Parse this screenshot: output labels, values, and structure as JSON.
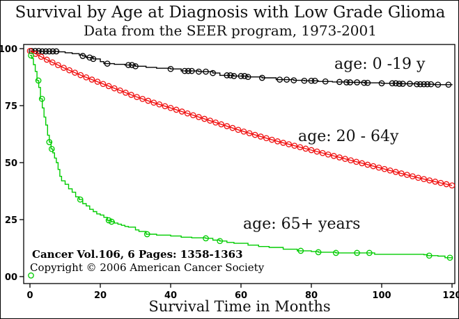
{
  "header": {
    "title": "Survival by Age at Diagnosis with Low Grade Glioma",
    "subtitle": "Data from the SEER program, 1973-2001"
  },
  "annotations": {
    "citation": "Cancer Vol.106, 6 Pages: 1358-1363",
    "copyright": "Copyright © 2006 American Cancer Society"
  },
  "colors": {
    "axis": "#000000",
    "series_black": "#000000",
    "series_red": "#f01010",
    "series_green": "#00cc00"
  },
  "chart_data": {
    "type": "line",
    "title": "Survival by Age at Diagnosis with Low Grade Glioma",
    "subtitle": "Data from the SEER program, 1973-2001",
    "xlabel": "Survival Time in Months",
    "ylabel": "",
    "xlim": [
      0,
      120
    ],
    "ylim": [
      0,
      100
    ],
    "grid": false,
    "x_ticks": {
      "values": [
        0,
        20,
        40,
        60,
        80,
        100,
        120
      ],
      "labels": [
        "0",
        "20",
        "40",
        "60",
        "80",
        "100",
        "120"
      ]
    },
    "y_ticks": {
      "values": [
        100,
        75,
        50,
        25,
        0
      ],
      "labels": [
        "100",
        "75",
        "50",
        "25",
        "00"
      ]
    },
    "series": [
      {
        "name": "age-0-19",
        "label": "age: 0 -19 y",
        "color": "#000000",
        "interpolation": "step",
        "marker": "circle",
        "marker_months": [
          0.5,
          1.5,
          2.5,
          3.5,
          4.5,
          5.5,
          6.5,
          7.5,
          15,
          17,
          18,
          22,
          28,
          29,
          30,
          40,
          44,
          45,
          46,
          48,
          50,
          52,
          56,
          57,
          58,
          60,
          61,
          62,
          66,
          71,
          73,
          75,
          78,
          80,
          81,
          84,
          88,
          90,
          91,
          93,
          95,
          96,
          100,
          103,
          104,
          105,
          106,
          108,
          110,
          111,
          112,
          113,
          114,
          116,
          119
        ],
        "points": [
          [
            0,
            99
          ],
          [
            3,
            98.8
          ],
          [
            8,
            98.6
          ],
          [
            10,
            98.2
          ],
          [
            12,
            97.8
          ],
          [
            14,
            97.2
          ],
          [
            15,
            96.8
          ],
          [
            16,
            96.1
          ],
          [
            18,
            95.5
          ],
          [
            20,
            94.3
          ],
          [
            21,
            93.4
          ],
          [
            24,
            93.1
          ],
          [
            27,
            92.8
          ],
          [
            30,
            92.3
          ],
          [
            33,
            91.8
          ],
          [
            36,
            91.4
          ],
          [
            40,
            91.1
          ],
          [
            43,
            90.2
          ],
          [
            48,
            89.9
          ],
          [
            52,
            89.3
          ],
          [
            54,
            88.3
          ],
          [
            58,
            88
          ],
          [
            62,
            87.6
          ],
          [
            66,
            87.2
          ],
          [
            70,
            86.4
          ],
          [
            75,
            86.1
          ],
          [
            78,
            85.9
          ],
          [
            82,
            85.6
          ],
          [
            86,
            85.4
          ],
          [
            90,
            85.2
          ],
          [
            95,
            85
          ],
          [
            100,
            84.8
          ],
          [
            105,
            84.6
          ],
          [
            110,
            84.4
          ],
          [
            115,
            84.2
          ],
          [
            120,
            84
          ]
        ]
      },
      {
        "name": "age-20-64",
        "label": "age: 20 - 64y",
        "color": "#f01010",
        "interpolation": "linear",
        "marker": "circle",
        "marker_step": 1.6,
        "points": [
          [
            0,
            99
          ],
          [
            5,
            95
          ],
          [
            10,
            91.3
          ],
          [
            15,
            88
          ],
          [
            20,
            85
          ],
          [
            25,
            82
          ],
          [
            30,
            79
          ],
          [
            35,
            76.4
          ],
          [
            40,
            74
          ],
          [
            45,
            71.5
          ],
          [
            50,
            69
          ],
          [
            55,
            66.5
          ],
          [
            60,
            64
          ],
          [
            65,
            61.7
          ],
          [
            70,
            59.5
          ],
          [
            75,
            57.5
          ],
          [
            80,
            55.5
          ],
          [
            85,
            53.5
          ],
          [
            90,
            51.5
          ],
          [
            95,
            49.5
          ],
          [
            100,
            47.5
          ],
          [
            105,
            45.5
          ],
          [
            110,
            43.5
          ],
          [
            115,
            41.7
          ],
          [
            120,
            40
          ]
        ]
      },
      {
        "name": "age-65plus",
        "label": "age: 65+ years",
        "color": "#00cc00",
        "interpolation": "step",
        "marker": "circle",
        "marker_months": [
          0.3,
          2.4,
          3.4,
          5.5,
          6.2,
          14.3,
          22.4,
          23.2,
          33.3,
          50,
          54,
          77,
          82,
          87,
          93,
          96.5,
          113.5,
          119.4
        ],
        "extra_markers": [
          [
            0.3,
            0.5
          ]
        ],
        "points": [
          [
            0,
            97
          ],
          [
            0.5,
            95.7
          ],
          [
            1,
            93
          ],
          [
            1.5,
            90
          ],
          [
            2,
            86
          ],
          [
            2.5,
            83
          ],
          [
            3,
            78
          ],
          [
            3.5,
            74
          ],
          [
            4,
            70
          ],
          [
            4.5,
            66.5
          ],
          [
            5,
            62
          ],
          [
            5.5,
            59
          ],
          [
            6,
            56
          ],
          [
            6.5,
            54.3
          ],
          [
            7,
            52
          ],
          [
            7.5,
            50
          ],
          [
            8,
            47
          ],
          [
            8.5,
            44
          ],
          [
            9,
            42
          ],
          [
            10,
            40.5
          ],
          [
            11,
            38.5
          ],
          [
            12,
            37
          ],
          [
            13,
            35
          ],
          [
            14,
            33.8
          ],
          [
            15,
            32
          ],
          [
            16,
            31
          ],
          [
            17,
            29.5
          ],
          [
            18,
            28.5
          ],
          [
            19,
            27.5
          ],
          [
            20,
            27
          ],
          [
            21,
            26
          ],
          [
            22,
            24.7
          ],
          [
            23,
            24.1
          ],
          [
            24,
            23.5
          ],
          [
            25,
            23
          ],
          [
            26,
            22.5
          ],
          [
            27,
            22
          ],
          [
            28,
            21.7
          ],
          [
            30,
            20.5
          ],
          [
            31,
            19.8
          ],
          [
            33,
            18.6
          ],
          [
            36,
            18.2
          ],
          [
            40,
            17.8
          ],
          [
            43,
            17.3
          ],
          [
            46,
            17
          ],
          [
            50,
            16.8
          ],
          [
            52,
            16
          ],
          [
            54,
            15.6
          ],
          [
            56,
            15
          ],
          [
            58,
            14.6
          ],
          [
            62,
            13.8
          ],
          [
            65,
            13.2
          ],
          [
            68,
            12.8
          ],
          [
            72,
            12
          ],
          [
            76,
            11.3
          ],
          [
            80,
            11
          ],
          [
            82,
            10.7
          ],
          [
            87,
            10.4
          ],
          [
            96,
            10.4
          ],
          [
            98,
            9.8
          ],
          [
            112,
            9.6
          ],
          [
            113,
            9.2
          ],
          [
            116,
            9
          ],
          [
            118,
            8.3
          ],
          [
            120,
            8
          ]
        ]
      }
    ]
  }
}
